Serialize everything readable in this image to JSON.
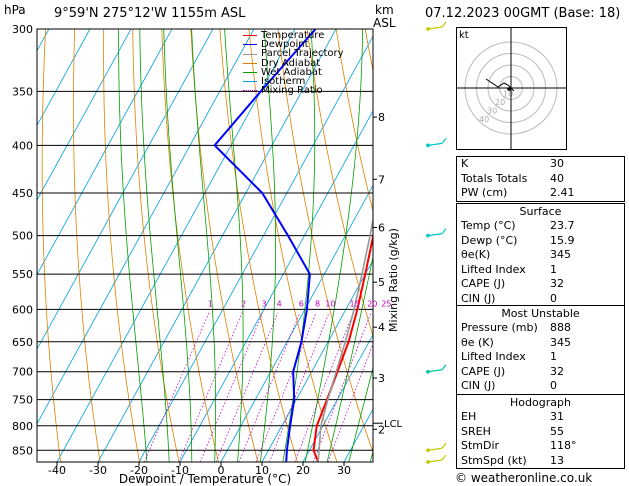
{
  "header": {
    "hpa_label": "hPa",
    "location": "9°59'N 275°12'W 1155m ASL",
    "km_label": "km",
    "asl_label": "ASL",
    "datetime": "07.12.2023 00GMT (Base: 18)"
  },
  "chart_data": {
    "type": "line",
    "title": "",
    "xlabel": "Dewpoint / Temperature (°C)",
    "ylabel": "hPa",
    "y2label": "Mixing Ratio (g/kg)",
    "xlim": [
      -45,
      37
    ],
    "ylim": [
      875,
      300
    ],
    "y_scale": "log",
    "x_ticks": [
      -40,
      -30,
      -20,
      -10,
      0,
      10,
      20,
      30
    ],
    "pressure_levels": [
      300,
      350,
      400,
      450,
      500,
      550,
      600,
      650,
      700,
      750,
      800,
      850
    ],
    "km_ticks": [
      {
        "label": "8",
        "p": 373
      },
      {
        "label": "7",
        "p": 435
      },
      {
        "label": "6",
        "p": 490
      },
      {
        "label": "5",
        "p": 561
      },
      {
        "label": "4",
        "p": 627
      },
      {
        "label": "3",
        "p": 711
      },
      {
        "label": "2",
        "p": 807
      }
    ],
    "lcl": {
      "label": "LCL",
      "p": 795
    },
    "mixing_ratio_labels": [
      "1",
      "2",
      "3",
      "4",
      "6",
      "8",
      "10",
      "15",
      "20",
      "25"
    ],
    "mixing_ratio_values": [
      1,
      2,
      3,
      4,
      6,
      8,
      10,
      15,
      20,
      25
    ],
    "series": [
      {
        "name": "Temperature",
        "color": "#ff0000",
        "points": [
          [
            23.7,
            875
          ],
          [
            21,
            850
          ],
          [
            18.5,
            800
          ],
          [
            17.5,
            750
          ],
          [
            16.3,
            700
          ],
          [
            15,
            650
          ],
          [
            12.8,
            600
          ],
          [
            10,
            550
          ],
          [
            6.8,
            500
          ],
          [
            3.2,
            450
          ],
          [
            -1,
            400
          ],
          [
            -5.5,
            350
          ]
        ]
      },
      {
        "name": "Dewpoint",
        "color": "#0000ff",
        "points": [
          [
            15.9,
            875
          ],
          [
            14.5,
            850
          ],
          [
            12,
            800
          ],
          [
            9.5,
            750
          ],
          [
            5.5,
            700
          ],
          [
            3.5,
            650
          ],
          [
            0.5,
            600
          ],
          [
            -3.5,
            550
          ],
          [
            -14,
            500
          ],
          [
            -26,
            450
          ],
          [
            -44,
            400
          ],
          [
            -40,
            350
          ],
          [
            -35,
            300
          ]
        ]
      },
      {
        "name": "Parcel Trajectory",
        "color": "#999999",
        "points": [
          [
            23.7,
            875
          ],
          [
            19.5,
            800
          ],
          [
            17.7,
            750
          ],
          [
            16,
            700
          ],
          [
            14.2,
            650
          ],
          [
            12,
            600
          ],
          [
            9.2,
            550
          ],
          [
            6,
            500
          ],
          [
            2.3,
            450
          ],
          [
            -2,
            400
          ],
          [
            -6.5,
            350
          ]
        ]
      }
    ],
    "legend": [
      {
        "name": "Temperature",
        "color": "#ff0000",
        "style": "solid"
      },
      {
        "name": "Dewpoint",
        "color": "#0000ff",
        "style": "solid"
      },
      {
        "name": "Parcel Trajectory",
        "color": "#999999",
        "style": "solid"
      },
      {
        "name": "Dry Adiabat",
        "color": "#e08000",
        "style": "solid"
      },
      {
        "name": "Wet Adiabat",
        "color": "#00a000",
        "style": "solid"
      },
      {
        "name": "Isotherm",
        "color": "#00a0e0",
        "style": "solid"
      },
      {
        "name": "Mixing Ratio",
        "color": "#c000c0",
        "style": "dotted"
      }
    ],
    "legend_position": "top-left",
    "wind_barbs": [
      {
        "p": 300,
        "color": "#c8c800"
      },
      {
        "p": 400,
        "color": "#00c8c8"
      },
      {
        "p": 500,
        "color": "#00c8c8"
      },
      {
        "p": 700,
        "color": "#00c8a0"
      },
      {
        "p": 850,
        "color": "#c8c800"
      },
      {
        "p": 875,
        "color": "#c8c800"
      }
    ]
  },
  "hodograph": {
    "label": "kt",
    "ring_labels": [
      "10",
      "20",
      "30",
      "40"
    ]
  },
  "indices": {
    "rows": [
      {
        "label": "K",
        "value": "30"
      },
      {
        "label": "Totals Totals",
        "value": "40"
      },
      {
        "label": "PW (cm)",
        "value": "2.41"
      }
    ]
  },
  "surface": {
    "title": "Surface",
    "rows": [
      {
        "label": "Temp (°C)",
        "value": "23.7"
      },
      {
        "label": "Dewp (°C)",
        "value": "15.9"
      },
      {
        "label": "θe(K)",
        "value": "345"
      },
      {
        "label": "Lifted Index",
        "value": "1"
      },
      {
        "label": "CAPE (J)",
        "value": "32"
      },
      {
        "label": "CIN (J)",
        "value": "0"
      }
    ]
  },
  "most_unstable": {
    "title": "Most Unstable",
    "rows": [
      {
        "label": "Pressure (mb)",
        "value": "888"
      },
      {
        "label": "θe (K)",
        "value": "345"
      },
      {
        "label": "Lifted Index",
        "value": "1"
      },
      {
        "label": "CAPE (J)",
        "value": "32"
      },
      {
        "label": "CIN (J)",
        "value": "0"
      }
    ]
  },
  "hodograph_table": {
    "title": "Hodograph",
    "rows": [
      {
        "label": "EH",
        "value": "31"
      },
      {
        "label": "SREH",
        "value": "55"
      },
      {
        "label": "StmDir",
        "value": "118°"
      },
      {
        "label": "StmSpd (kt)",
        "value": "13"
      }
    ]
  },
  "footer": {
    "copyright": "© weatheronline.co.uk"
  }
}
